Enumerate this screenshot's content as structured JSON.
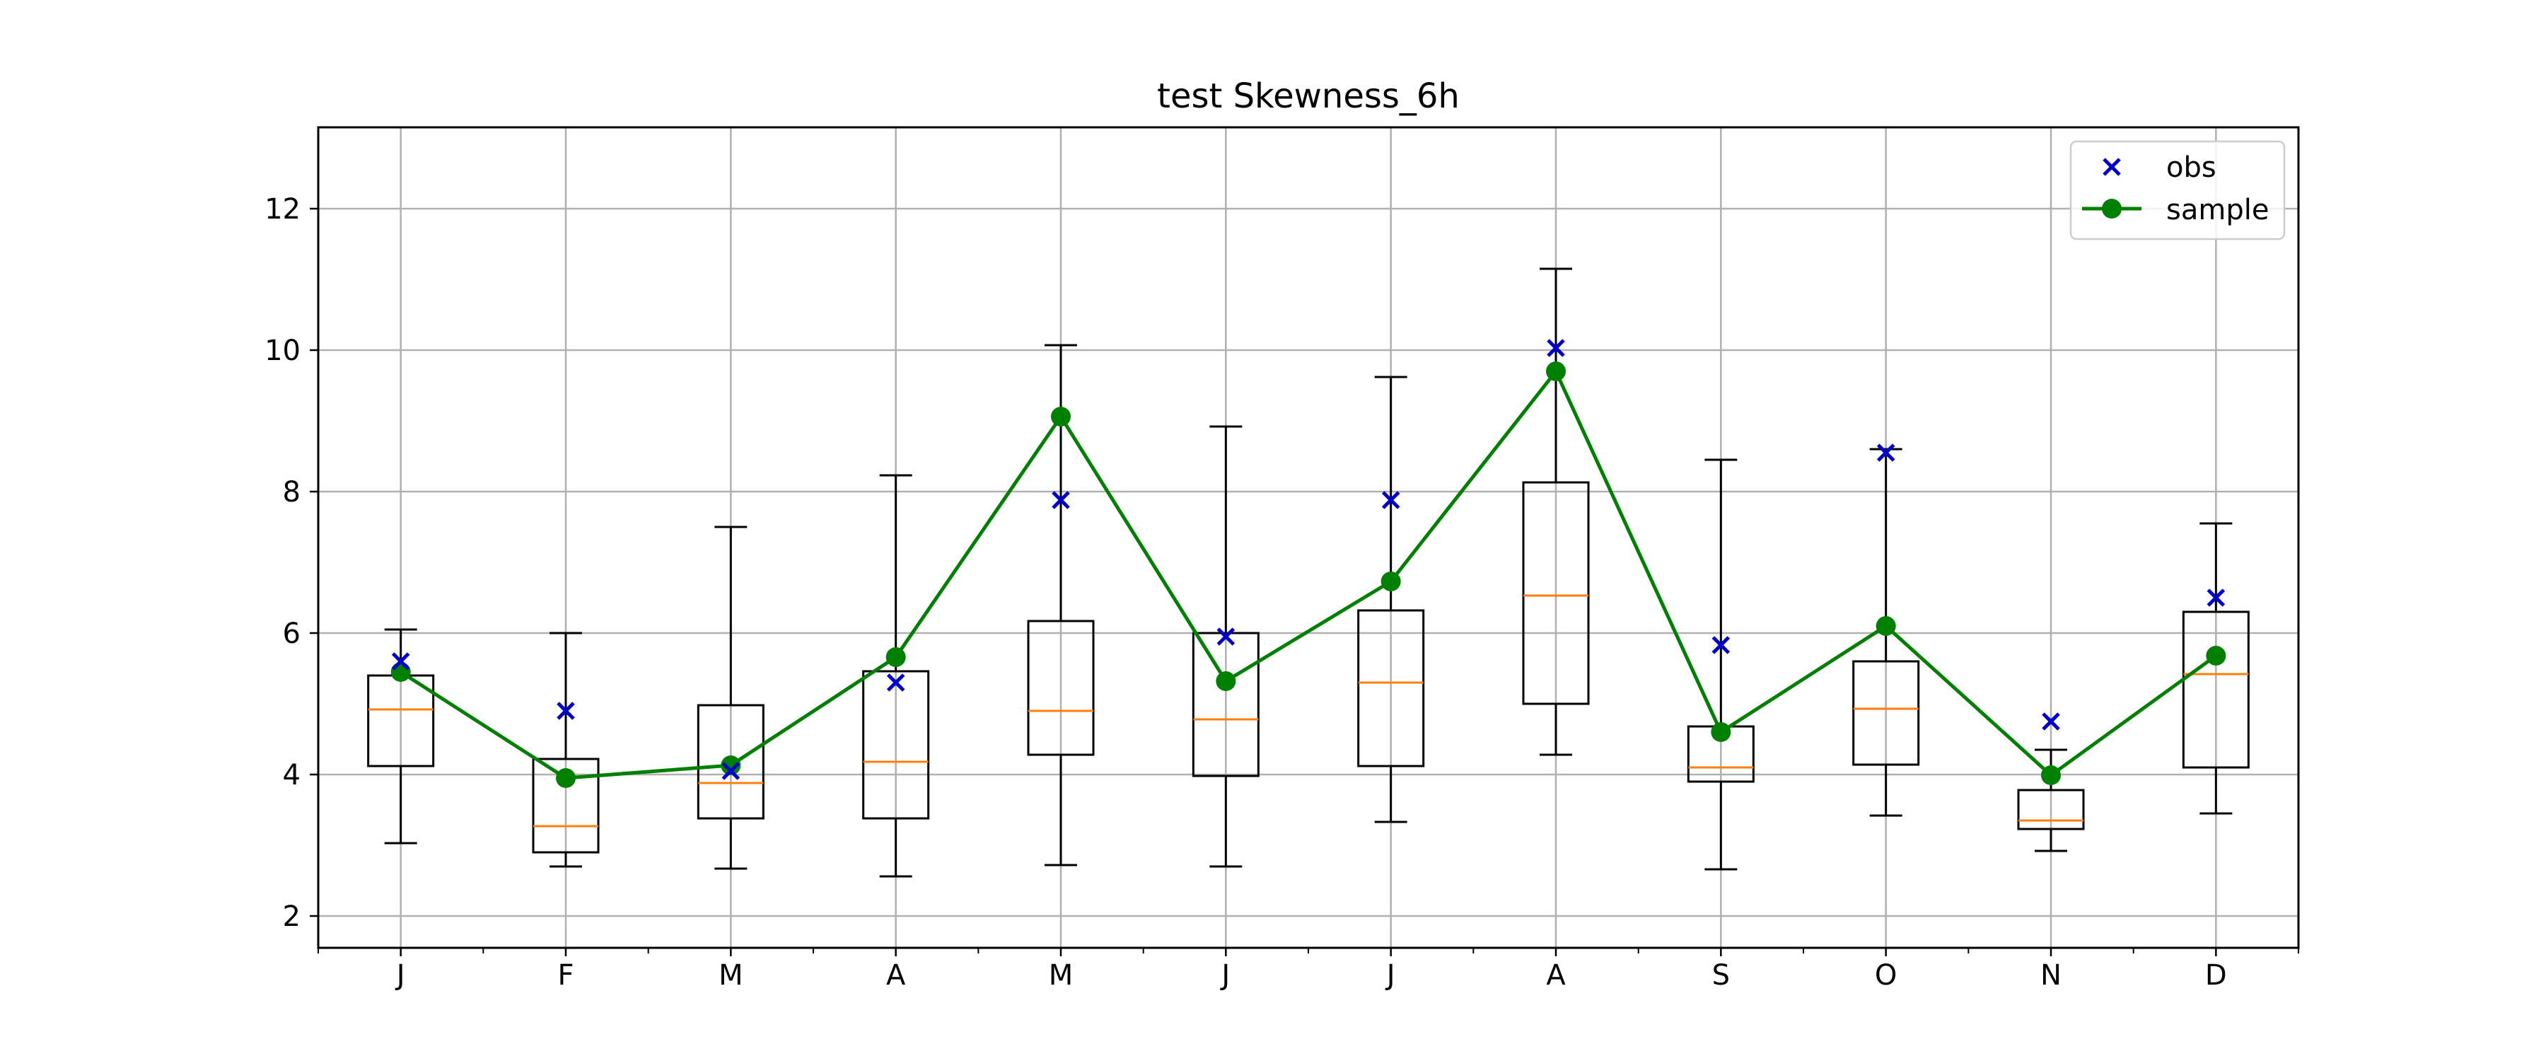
{
  "chart_data": {
    "type": "box",
    "title": "test Skewness_6h",
    "xlabel": "",
    "ylabel": "",
    "categories": [
      "J",
      "F",
      "M",
      "A",
      "M",
      "J",
      "J",
      "A",
      "S",
      "O",
      "N",
      "D"
    ],
    "ylim": [
      1.55,
      13.15
    ],
    "y_ticks": [
      2,
      4,
      6,
      8,
      10,
      12
    ],
    "grid": true,
    "legend_position": "top-right",
    "boxes": [
      {
        "whisker_low": 3.03,
        "q1": 4.12,
        "median": 4.92,
        "q3": 5.4,
        "whisker_high": 6.05
      },
      {
        "whisker_low": 2.7,
        "q1": 2.9,
        "median": 3.27,
        "q3": 4.22,
        "whisker_high": 6.0
      },
      {
        "whisker_low": 2.67,
        "q1": 3.38,
        "median": 3.88,
        "q3": 4.98,
        "whisker_high": 7.5
      },
      {
        "whisker_low": 2.56,
        "q1": 3.38,
        "median": 4.18,
        "q3": 5.46,
        "whisker_high": 8.23
      },
      {
        "whisker_low": 2.72,
        "q1": 4.28,
        "median": 4.9,
        "q3": 6.17,
        "whisker_high": 10.07
      },
      {
        "whisker_low": 2.7,
        "q1": 3.98,
        "median": 4.78,
        "q3": 6.0,
        "whisker_high": 8.92
      },
      {
        "whisker_low": 3.33,
        "q1": 4.12,
        "median": 5.3,
        "q3": 6.32,
        "whisker_high": 9.62
      },
      {
        "whisker_low": 4.28,
        "q1": 5.0,
        "median": 6.53,
        "q3": 8.13,
        "whisker_high": 11.15
      },
      {
        "whisker_low": 2.66,
        "q1": 3.9,
        "median": 4.1,
        "q3": 4.68,
        "whisker_high": 8.45
      },
      {
        "whisker_low": 3.42,
        "q1": 4.14,
        "median": 4.93,
        "q3": 5.6,
        "whisker_high": 8.6
      },
      {
        "whisker_low": 2.92,
        "q1": 3.23,
        "median": 3.35,
        "q3": 3.78,
        "whisker_high": 4.35
      },
      {
        "whisker_low": 3.45,
        "q1": 4.1,
        "median": 5.42,
        "q3": 6.3,
        "whisker_high": 7.55
      }
    ],
    "series": [
      {
        "name": "obs",
        "marker": "x",
        "color": "#0000cc",
        "values": [
          5.6,
          4.9,
          4.05,
          5.3,
          7.88,
          5.95,
          7.88,
          10.03,
          5.83,
          8.55,
          4.75,
          6.5
        ]
      },
      {
        "name": "sample",
        "marker": "o",
        "line": true,
        "color": "#008000",
        "values": [
          5.45,
          3.95,
          4.13,
          5.66,
          9.06,
          5.32,
          6.73,
          9.7,
          4.6,
          6.1,
          3.99,
          5.68
        ]
      }
    ],
    "colors": {
      "box": "#000000",
      "median": "#ff7f0e",
      "grid": "#b0b0b0"
    }
  }
}
